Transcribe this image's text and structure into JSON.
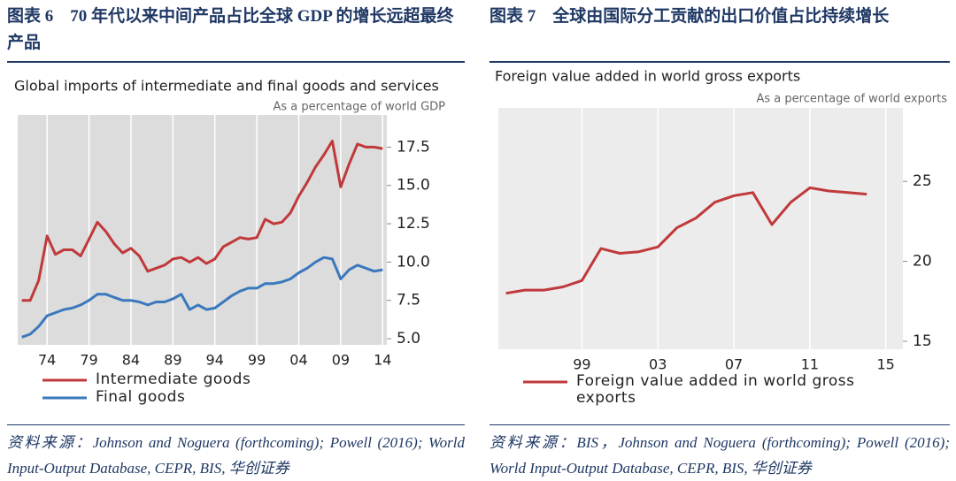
{
  "captions": [
    "图表 6　70 年代以来中间产品占比全球 GDP 的增长远超最终产品",
    "图表 7　全球由国际分工贡献的出口价值占比持续增长"
  ],
  "sources": [
    "资料来源：Johnson and Noguera (forthcoming); Powell (2016); World Input-Output Database, CEPR, BIS, 华创证券",
    "资料来源：BIS，Johnson and Noguera (forthcoming); Powell (2016); World Input-Output Database, CEPR, BIS, 华创证券"
  ],
  "chart_data": [
    {
      "type": "line",
      "title": "Global imports of intermediate and final goods and services",
      "subtitle": "As a percentage of world GDP",
      "x": [
        1971,
        1972,
        1973,
        1974,
        1975,
        1976,
        1977,
        1978,
        1979,
        1980,
        1981,
        1982,
        1983,
        1984,
        1985,
        1986,
        1987,
        1988,
        1989,
        1990,
        1991,
        1992,
        1993,
        1994,
        1995,
        1996,
        1997,
        1998,
        1999,
        2000,
        2001,
        2002,
        2003,
        2004,
        2005,
        2006,
        2007,
        2008,
        2009,
        2010,
        2011,
        2012,
        2013,
        2014
      ],
      "series": [
        {
          "name": "Intermediate goods",
          "color": "#c0393b",
          "values": [
            7.5,
            7.5,
            8.8,
            11.7,
            10.5,
            10.8,
            10.8,
            10.4,
            11.5,
            12.6,
            12.0,
            11.2,
            10.6,
            10.9,
            10.4,
            9.4,
            9.6,
            9.8,
            10.2,
            10.3,
            10.0,
            10.3,
            9.9,
            10.2,
            11.0,
            11.3,
            11.6,
            11.5,
            11.6,
            12.8,
            12.5,
            12.6,
            13.2,
            14.3,
            15.2,
            16.2,
            17.0,
            17.9,
            14.9,
            16.4,
            17.7,
            17.5,
            17.5,
            17.4
          ]
        },
        {
          "name": "Final goods",
          "color": "#3a78bd",
          "values": [
            5.1,
            5.3,
            5.8,
            6.5,
            6.7,
            6.9,
            7.0,
            7.2,
            7.5,
            7.9,
            7.9,
            7.7,
            7.5,
            7.5,
            7.4,
            7.2,
            7.4,
            7.4,
            7.6,
            7.9,
            6.9,
            7.2,
            6.9,
            7.0,
            7.4,
            7.8,
            8.1,
            8.3,
            8.3,
            8.6,
            8.6,
            8.7,
            8.9,
            9.3,
            9.6,
            10.0,
            10.3,
            10.2,
            8.9,
            9.5,
            9.8,
            9.6,
            9.4,
            9.5
          ]
        }
      ],
      "xlim": [
        1970.5,
        2014.5
      ],
      "xticks": [
        {
          "value": 1974,
          "label": "74"
        },
        {
          "value": 1979,
          "label": "79"
        },
        {
          "value": 1984,
          "label": "84"
        },
        {
          "value": 1989,
          "label": "89"
        },
        {
          "value": 1994,
          "label": "94"
        },
        {
          "value": 1999,
          "label": "99"
        },
        {
          "value": 2004,
          "label": "04"
        },
        {
          "value": 2009,
          "label": "09"
        },
        {
          "value": 2014,
          "label": "14"
        }
      ],
      "ylim": [
        4.6,
        19.6
      ],
      "yticks": [
        {
          "value": 5,
          "label": "5.0"
        },
        7.5,
        {
          "value": 10,
          "label": "10.0"
        },
        12.5,
        {
          "value": 15,
          "label": "15.0"
        },
        17.5
      ],
      "grid": true
    },
    {
      "type": "line",
      "title": "Foreign value added in world gross exports",
      "subtitle": "As a percentage of world exports",
      "x": [
        1995,
        1996,
        1997,
        1998,
        1999,
        2000,
        2001,
        2002,
        2003,
        2004,
        2005,
        2006,
        2007,
        2008,
        2009,
        2010,
        2011,
        2012,
        2013,
        2014
      ],
      "series": [
        {
          "name": "Foreign value added in world gross exports",
          "color": "#c0393b",
          "values": [
            18.0,
            18.2,
            18.2,
            18.4,
            18.8,
            20.8,
            20.5,
            20.6,
            20.9,
            22.1,
            22.7,
            23.7,
            24.1,
            24.3,
            22.3,
            23.7,
            24.6,
            24.4,
            24.3,
            24.2
          ]
        }
      ],
      "xlim": [
        1994.6,
        2015.9
      ],
      "xticks": [
        {
          "value": 1999,
          "label": "99"
        },
        {
          "value": 2003,
          "label": "03"
        },
        {
          "value": 2007,
          "label": "07"
        },
        {
          "value": 2011,
          "label": "11"
        },
        {
          "value": 2015,
          "label": "15"
        }
      ],
      "ylim": [
        14.5,
        29.6
      ],
      "yticks": [
        15,
        20,
        25
      ],
      "grid": true
    }
  ]
}
